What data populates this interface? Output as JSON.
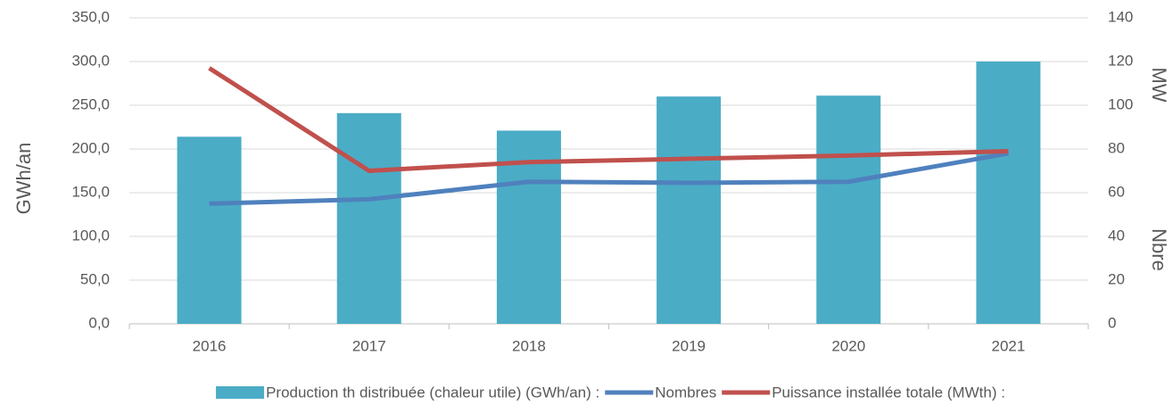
{
  "chart_data": {
    "type": "bar_line",
    "y_label": "GWh/an",
    "y2_labels": [
      "MW",
      "Nbre"
    ],
    "categories": [
      "2016",
      "2017",
      "2018",
      "2019",
      "2020",
      "2021"
    ],
    "series": [
      {
        "name": "Production th distribuée (chaleur utile) (GWh/an) :",
        "type": "bar",
        "color": "#4bacc6",
        "values": [
          214,
          241,
          221,
          260,
          261,
          300
        ]
      },
      {
        "name": "Nombres",
        "type": "line",
        "axis": "y2",
        "color": "#4f81bd",
        "values": [
          55,
          57,
          65,
          64.5,
          65,
          78
        ]
      },
      {
        "name": "Puissance installée totale (MWth) :",
        "type": "line",
        "axis": "y2",
        "color": "#c0504d",
        "values": [
          117,
          70,
          74,
          75.5,
          77,
          79
        ]
      }
    ],
    "ylim": [
      0,
      350
    ],
    "yticks": [
      {
        "value": 0,
        "label": "0,0"
      },
      {
        "value": 50,
        "label": "50,0"
      },
      {
        "value": 100,
        "label": "100,0"
      },
      {
        "value": 150,
        "label": "150,0"
      },
      {
        "value": 200,
        "label": "200,0"
      },
      {
        "value": 250,
        "label": "250,0"
      },
      {
        "value": 300,
        "label": "300,0"
      },
      {
        "value": 350,
        "label": "350,0"
      }
    ],
    "y2lim": [
      0,
      140
    ],
    "y2ticks": [
      0,
      20,
      40,
      60,
      80,
      100,
      120,
      140
    ],
    "grid": true
  }
}
